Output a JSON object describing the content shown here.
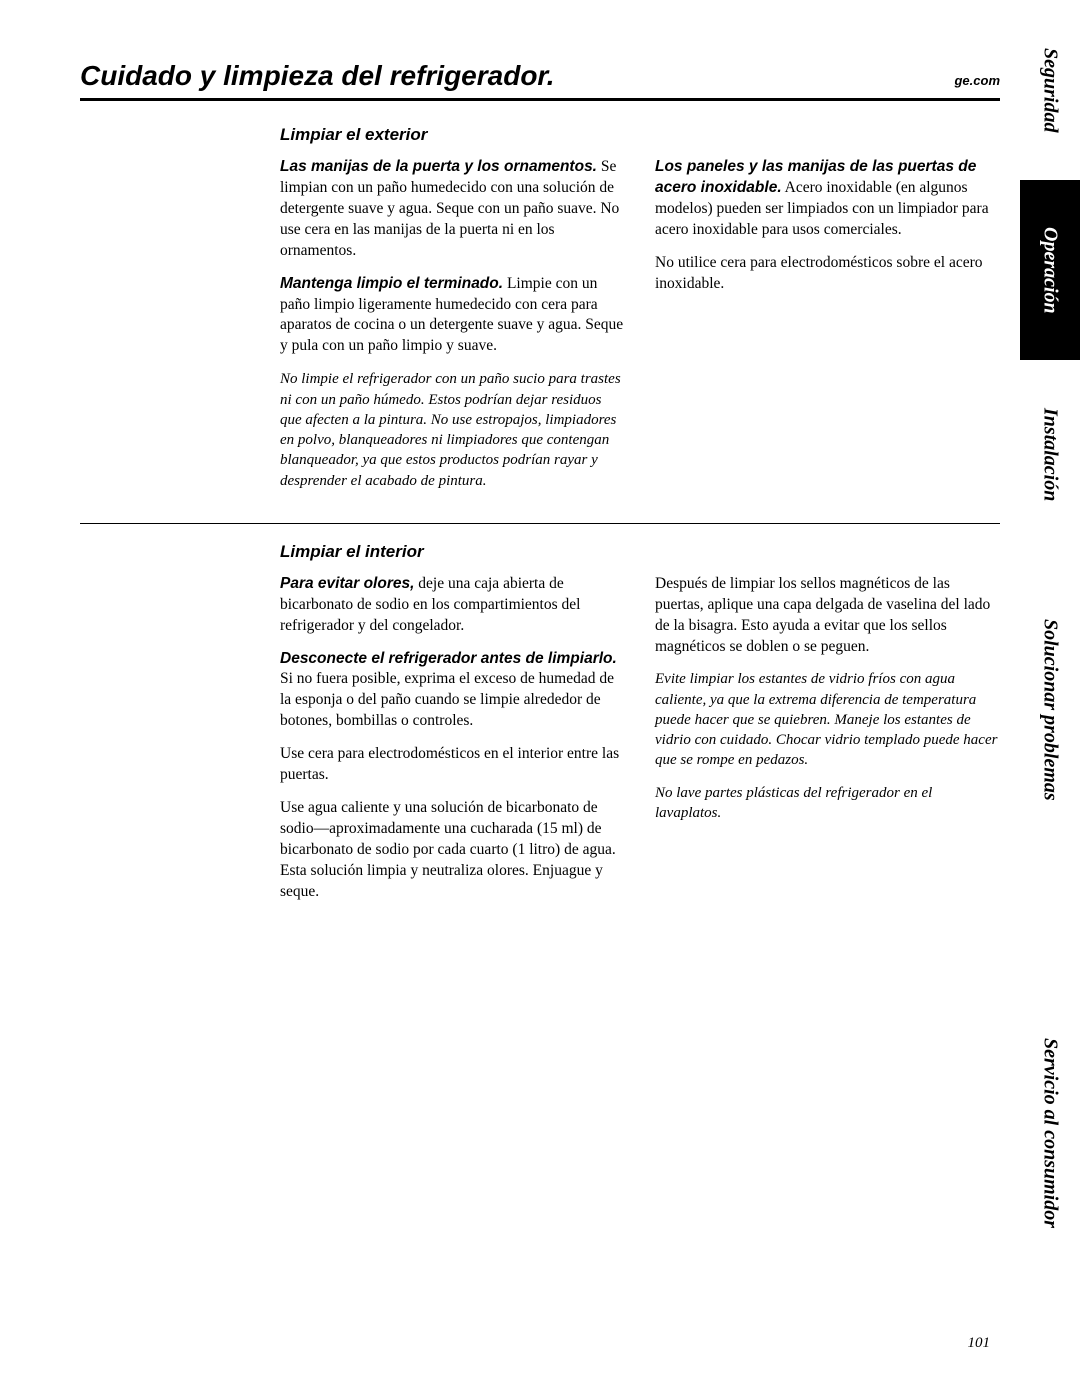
{
  "header": {
    "title": "Cuidado y limpieza del refrigerador.",
    "website": "ge.com"
  },
  "section1": {
    "title": "Limpiar el exterior",
    "left": {
      "p1_lead": "Las manijas de la puerta y los ornamentos.",
      "p1_body": " Se limpian con un paño humedecido con una solución de detergente suave y agua. Seque con un paño suave. No use cera en las manijas de la puerta ni en los ornamentos.",
      "p2_lead": "Mantenga limpio el terminado.",
      "p2_body": " Limpie con un paño limpio ligeramente humedecido con cera para aparatos de cocina o un detergente suave y agua. Seque y pula con un paño limpio y suave.",
      "note": "No limpie el refrigerador con un paño sucio para trastes ni con un paño húmedo. Estos podrían dejar residuos que afecten a la pintura. No use estropajos, limpiadores en polvo, blanqueadores ni limpiadores que contengan blanqueador, ya que estos productos podrían rayar y desprender el acabado de pintura."
    },
    "right": {
      "p1_lead": "Los paneles y las manijas de las puertas de acero inoxidable.",
      "p1_body": " Acero inoxidable (en algunos modelos) pueden ser limpiados con un limpiador para acero inoxidable para usos comerciales.",
      "p2": "No utilice cera para electrodomésticos sobre el acero inoxidable."
    }
  },
  "section2": {
    "title": "Limpiar el interior",
    "left": {
      "p1_lead": "Para evitar olores,",
      "p1_body": " deje una caja abierta de bicarbonato de sodio en los compartimientos del refrigerador y del congelador.",
      "p2_lead": "Desconecte el refrigerador antes de limpiarlo.",
      "p2_body": "Si no fuera posible, exprima el exceso de humedad de la esponja o del paño cuando se limpie alrededor de botones, bombillas o controles.",
      "p3": "Use cera para electrodomésticos en el interior entre las puertas.",
      "p4": "Use agua caliente y una solución de bicarbonato de sodio—aproximadamente una cucharada (15 ml) de bicarbonato de sodio por cada cuarto (1 litro) de agua. Esta solución limpia y neutraliza olores. Enjuague y seque."
    },
    "right": {
      "p1": "Después de limpiar los sellos magnéticos de las puertas, aplique una capa delgada de vaselina del lado de la bisagra. Esto ayuda a evitar que los sellos magnéticos se doblen o se peguen.",
      "note1": "Evite limpiar los estantes de vidrio fríos con agua caliente, ya que la extrema diferencia de temperatura puede hacer que se quiebren. Maneje los estantes de vidrio con cuidado. Chocar vidrio templado puede hacer que se rompe en pedazos.",
      "note2": "No lave partes plásticas del refrigerador en el lavaplatos."
    }
  },
  "sidebar": {
    "tab1": "Seguridad",
    "tab2": "Operación",
    "tab3": "Instalación",
    "tab4": "Solucionar problemas",
    "tab5": "Servicio al consumidor"
  },
  "page_number": "101",
  "colors": {
    "black": "#000000",
    "white": "#ffffff"
  }
}
